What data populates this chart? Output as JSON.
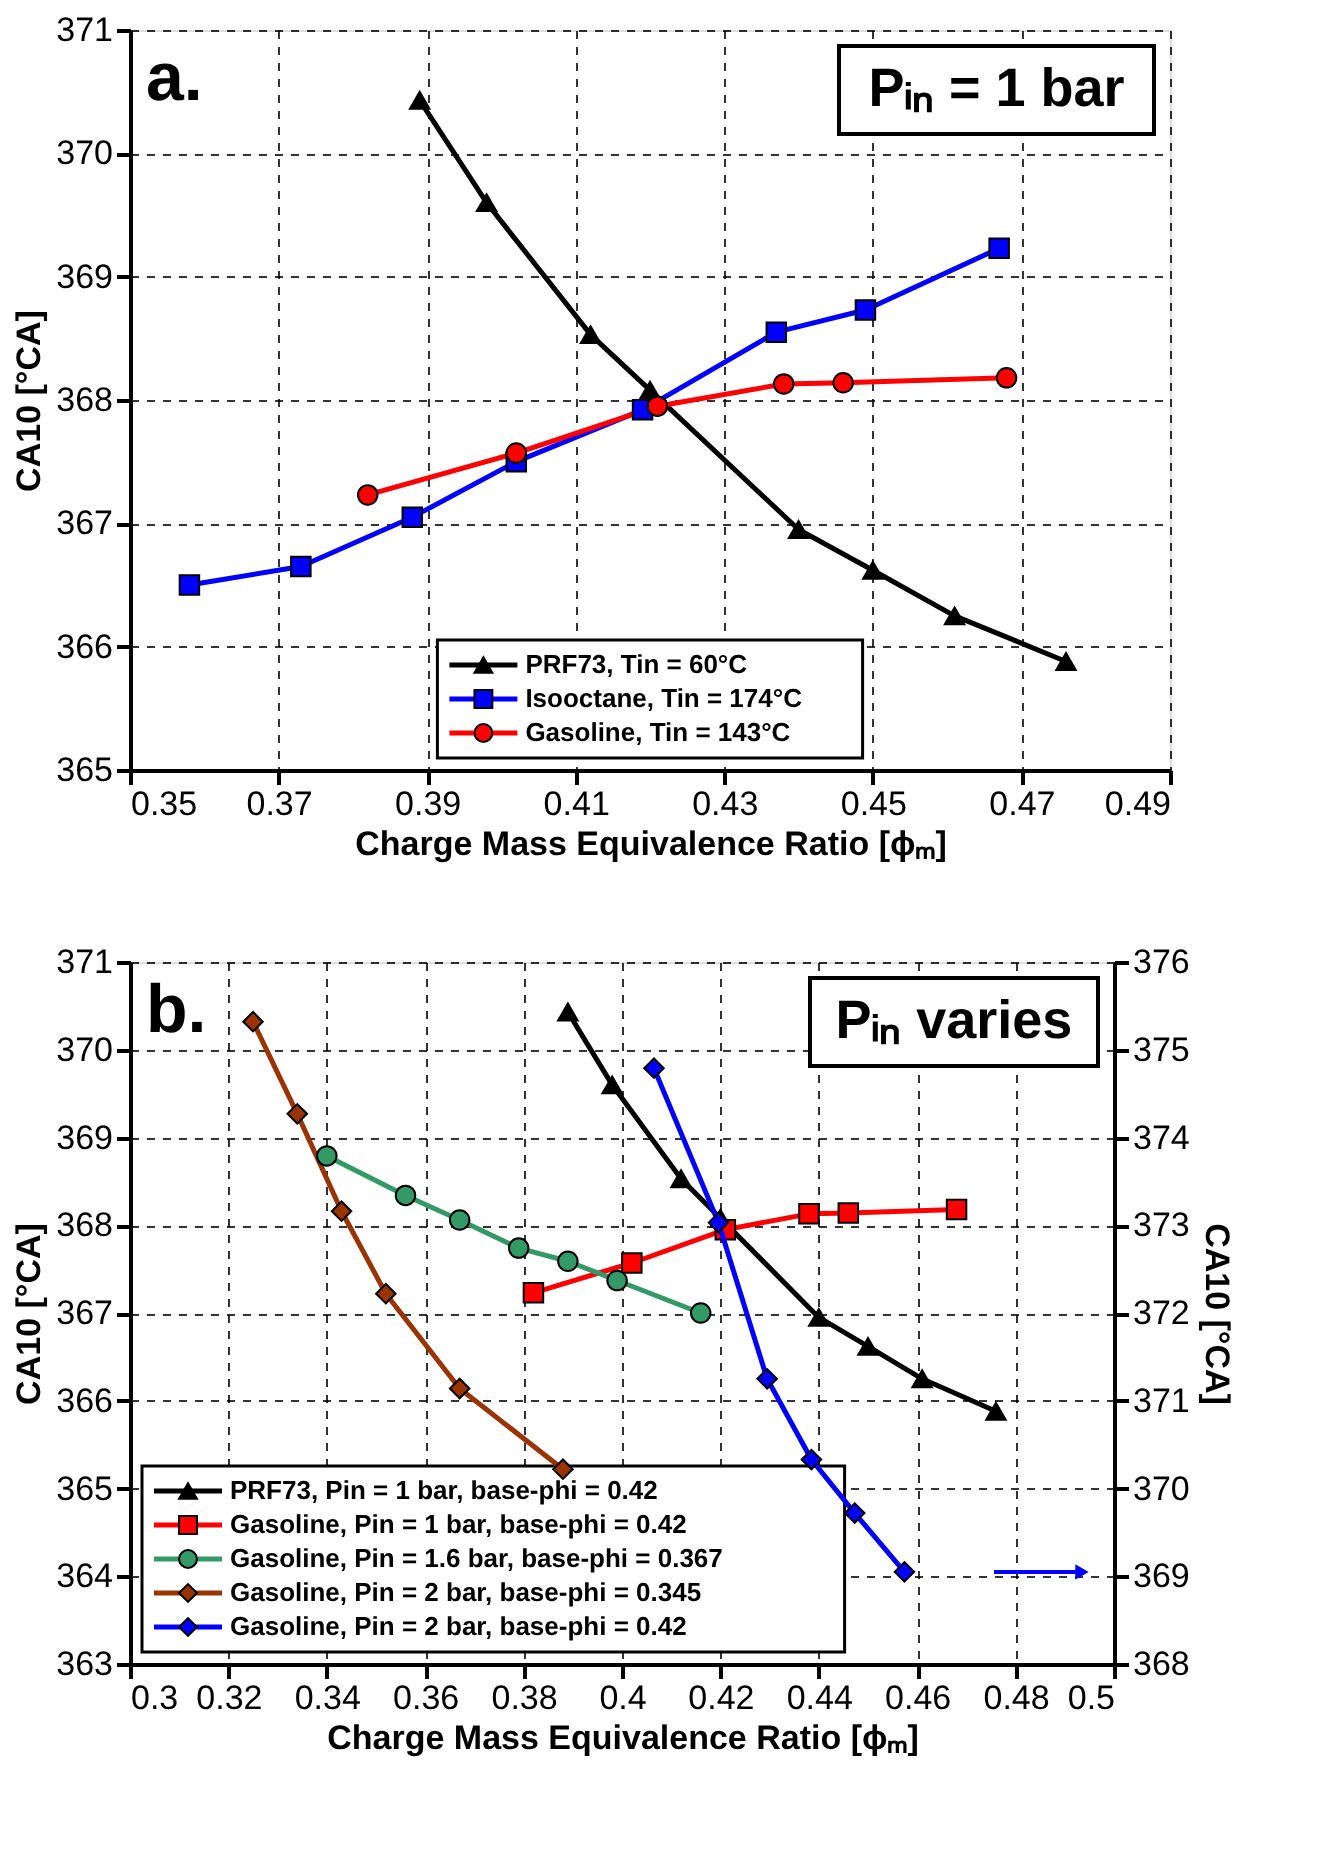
{
  "chart_data": [
    {
      "type": "line",
      "xlabel": "Charge Mass Equivalence Ratio [ϕₘ]",
      "ylabel": "CA10 [°CA]",
      "annotations": [
        "a.",
        "Pᵢₙ = 1 bar"
      ],
      "xlim": [
        0.35,
        0.49
      ],
      "xticks": [
        0.35,
        0.37,
        0.39,
        0.41,
        0.43,
        0.45,
        0.47,
        0.49
      ],
      "ylim": [
        365,
        371
      ],
      "yticks": [
        365,
        366,
        367,
        368,
        369,
        370,
        371
      ],
      "grid": true,
      "legend": "bottom",
      "line_style": "solid",
      "series": [
        {
          "name": "PRF73, Tin = 60°C",
          "color": "#000000",
          "marker": "triangle",
          "x": [
            0.389,
            0.398,
            0.412,
            0.42,
            0.44,
            0.45,
            0.461,
            0.476
          ],
          "values": [
            370.43,
            369.6,
            368.53,
            368.08,
            366.95,
            366.62,
            366.25,
            365.88
          ]
        },
        {
          "name": "Isooctane, Tin = 174°C",
          "color": "#0000ff",
          "marker": "square",
          "x": [
            0.358,
            0.373,
            0.388,
            0.402,
            0.419,
            0.437,
            0.449,
            0.467
          ],
          "values": [
            366.5,
            366.65,
            367.05,
            367.5,
            367.92,
            368.55,
            368.73,
            369.23
          ]
        },
        {
          "name": "Gasoline, Tin = 143°C",
          "color": "#ff0000",
          "marker": "circle",
          "x": [
            0.382,
            0.402,
            0.421,
            0.438,
            0.446,
            0.468
          ],
          "values": [
            367.23,
            367.57,
            367.95,
            368.13,
            368.14,
            368.18
          ]
        }
      ]
    },
    {
      "type": "line",
      "xlabel": "Charge Mass Equivalence Ratio [ϕₘ]",
      "ylabel": "CA10 [°CA]",
      "y2label": "CA10 [°CA]",
      "annotations": [
        "b.",
        "Pᵢₙ varies"
      ],
      "xlim": [
        0.3,
        0.5
      ],
      "xticks": [
        0.3,
        0.32,
        0.34,
        0.36,
        0.38,
        0.4,
        0.42,
        0.44,
        0.46,
        0.48,
        0.5
      ],
      "ylim": [
        363,
        371
      ],
      "yticks": [
        363,
        364,
        365,
        366,
        367,
        368,
        369,
        370,
        371
      ],
      "y2lim": [
        368,
        376
      ],
      "y2ticks": [
        368,
        369,
        370,
        371,
        372,
        373,
        374,
        375,
        376
      ],
      "grid": true,
      "legend": "bottom left",
      "line_style": "solid",
      "series": [
        {
          "name": "PRF73, Pin = 1 bar, base-phi = 0.42",
          "color": "#000000",
          "marker": "triangle",
          "x": [
            0.389,
            0.398,
            0.412,
            0.42,
            0.44,
            0.45,
            0.461,
            0.476
          ],
          "values": [
            370.43,
            369.6,
            368.53,
            368.08,
            366.95,
            366.62,
            366.25,
            365.88
          ]
        },
        {
          "name": "Gasoline, Pin = 1 bar, base-phi = 0.42",
          "color": "#ff0000",
          "marker": "square",
          "x": [
            0.382,
            0.402,
            0.421,
            0.438,
            0.446,
            0.468
          ],
          "values": [
            367.23,
            367.57,
            367.95,
            368.13,
            368.14,
            368.18
          ]
        },
        {
          "name": "Gasoline, Pin = 1.6 bar, base-phi = 0.367",
          "color": "#339966",
          "marker": "circle",
          "x": [
            0.34,
            0.356,
            0.367,
            0.379,
            0.389,
            0.399,
            0.416
          ],
          "values": [
            368.79,
            368.34,
            368.06,
            367.74,
            367.59,
            367.37,
            367.0
          ]
        },
        {
          "name": "Gasoline, Pin = 2 bar, base-phi = 0.345",
          "color": "#993300",
          "marker": "diamond",
          "x": [
            0.325,
            0.334,
            0.343,
            0.352,
            0.367,
            0.388
          ],
          "values": [
            370.32,
            369.27,
            368.16,
            367.22,
            366.14,
            365.22
          ]
        },
        {
          "name": "Gasoline, Pin = 2 bar, base-phi = 0.42",
          "color": "#0000ff",
          "marker": "diamond",
          "axis": "y2",
          "x": [
            0.4065,
            0.4196,
            0.4295,
            0.4385,
            0.4473,
            0.4574
          ],
          "values": [
            374.79,
            373.03,
            371.25,
            370.33,
            369.72,
            369.05
          ]
        }
      ]
    }
  ]
}
